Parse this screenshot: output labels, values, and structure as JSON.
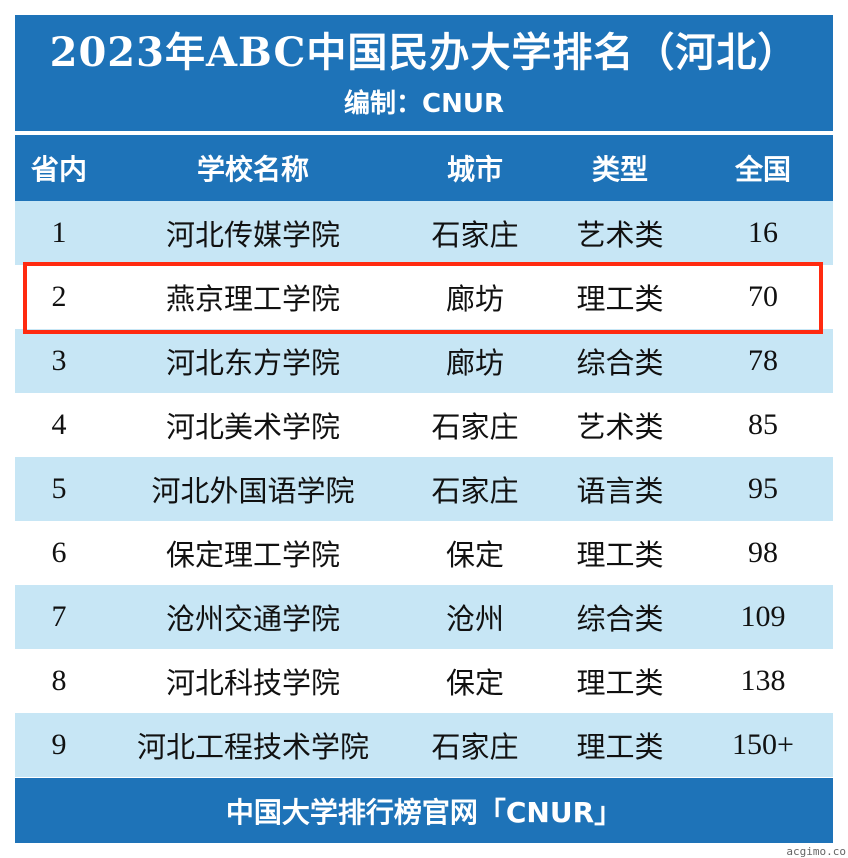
{
  "title": "2023年ABC中国民办大学排名（河北）",
  "subtitle": "编制：CNUR",
  "headers": [
    "省内",
    "学校名称",
    "城市",
    "类型",
    "全国"
  ],
  "rows": [
    {
      "rank": "1",
      "name": "河北传媒学院",
      "city": "石家庄",
      "type": "艺术类",
      "national": "16"
    },
    {
      "rank": "2",
      "name": "燕京理工学院",
      "city": "廊坊",
      "type": "理工类",
      "national": "70"
    },
    {
      "rank": "3",
      "name": "河北东方学院",
      "city": "廊坊",
      "type": "综合类",
      "national": "78"
    },
    {
      "rank": "4",
      "name": "河北美术学院",
      "city": "石家庄",
      "type": "艺术类",
      "national": "85"
    },
    {
      "rank": "5",
      "name": "河北外国语学院",
      "city": "石家庄",
      "type": "语言类",
      "national": "95"
    },
    {
      "rank": "6",
      "name": "保定理工学院",
      "city": "保定",
      "type": "理工类",
      "national": "98"
    },
    {
      "rank": "7",
      "name": "沧州交通学院",
      "city": "沧州",
      "type": "综合类",
      "national": "109"
    },
    {
      "rank": "8",
      "name": "河北科技学院",
      "city": "保定",
      "type": "理工类",
      "national": "138"
    },
    {
      "rank": "9",
      "name": "河北工程技术学院",
      "city": "石家庄",
      "type": "理工类",
      "national": "150+"
    }
  ],
  "highlighted_row": "2",
  "footer": "中国大学排行榜官网「CNUR」",
  "watermark": "acgimo.co",
  "colors": {
    "header_blue": "#1e73b8",
    "stripe_blue": "#c7e6f5",
    "highlight_red": "#ff2a10"
  }
}
